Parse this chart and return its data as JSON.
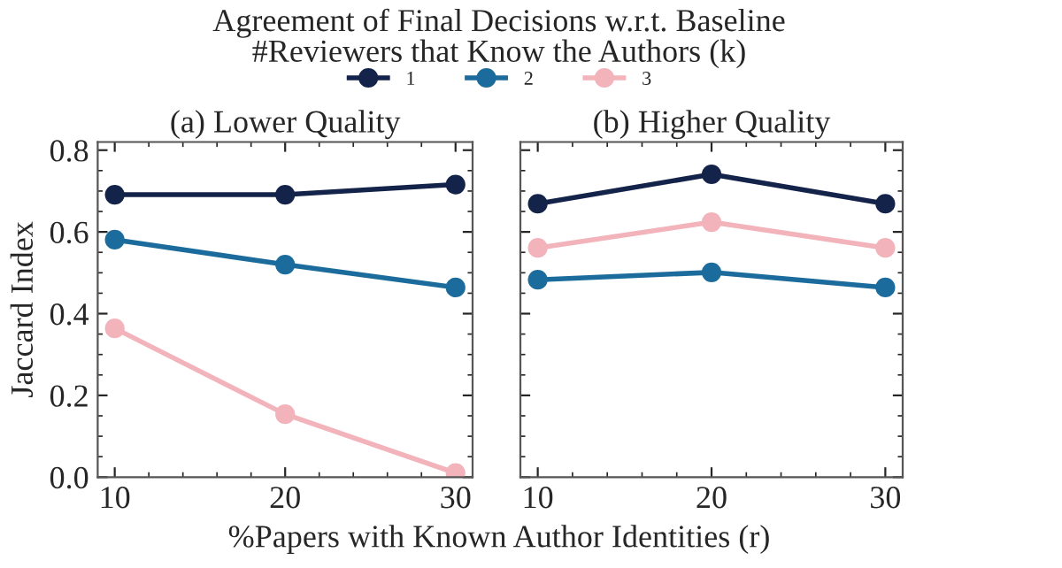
{
  "chart_data": [
    {
      "type": "line",
      "title": "(a) Lower Quality",
      "ylabel": "Jaccard Index",
      "xlabel": "%Papers with Known Author Identities (r)",
      "legend_title": "#Reviewers that Know the Authors (k)",
      "annotations": [
        "Agreement of Final Decisions w.r.t. Baseline"
      ],
      "x": [
        10,
        20,
        30
      ],
      "series": [
        {
          "name": "1",
          "color": "#13234a",
          "values": [
            0.691,
            0.691,
            0.716
          ]
        },
        {
          "name": "2",
          "color": "#1b6c9c",
          "values": [
            0.581,
            0.52,
            0.464
          ]
        },
        {
          "name": "3",
          "color": "#f2b3bb",
          "values": [
            0.364,
            0.154,
            0.01
          ]
        }
      ],
      "xlim": [
        9,
        31
      ],
      "ylim": [
        0,
        0.82
      ],
      "xticks": [
        10,
        20,
        30
      ],
      "yticks": [
        {
          "value": 0,
          "label": "0.0"
        },
        0.2,
        0.4,
        0.6,
        0.8
      ],
      "marker": "circle",
      "line_style": "solid",
      "grid": false,
      "legend": "top"
    },
    {
      "type": "line",
      "title": "(b) Higher Quality",
      "x": [
        10,
        20,
        30
      ],
      "series": [
        {
          "name": "1",
          "color": "#13234a",
          "values": [
            0.669,
            0.741,
            0.669
          ]
        },
        {
          "name": "2",
          "color": "#1b6c9c",
          "values": [
            0.483,
            0.501,
            0.464
          ]
        },
        {
          "name": "3",
          "color": "#f2b3bb",
          "values": [
            0.561,
            0.624,
            0.561
          ]
        }
      ],
      "xlim": [
        9,
        31
      ],
      "ylim": [
        0,
        0.82
      ],
      "xticks": [
        10,
        20,
        30
      ],
      "yticks": [
        {
          "value": 0,
          "label": null
        },
        {
          "value": 0.2,
          "label": null
        },
        {
          "value": 0.4,
          "label": null
        },
        {
          "value": 0.6,
          "label": null
        },
        {
          "value": 0.8,
          "label": null
        }
      ],
      "tick_labels": "x",
      "marker": "circle",
      "line_style": "solid",
      "grid": false
    }
  ]
}
